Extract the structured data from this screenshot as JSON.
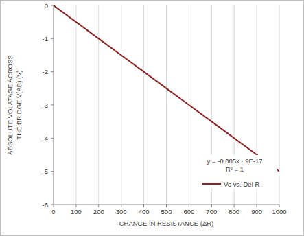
{
  "chart_data": {
    "type": "line",
    "x_label": "CHANGE IN RESISTANCE (ΔR)",
    "y_label": [
      "ABSOLUTE VOLATAGE ACROSS",
      "THE BRIDGE V(AB) (V)"
    ],
    "annotations": [
      "y = -0.005x - 9E-17",
      "R² = 1"
    ],
    "x": [
      0,
      100,
      200,
      300,
      400,
      500,
      600,
      700,
      800,
      900,
      1000
    ],
    "series": [
      {
        "name": "Vo vs. Del R",
        "color": "#8b2525",
        "values": [
          0,
          -0.5,
          -1,
          -1.5,
          -2,
          -2.5,
          -3,
          -3.5,
          -4,
          -4.5,
          -5
        ]
      }
    ],
    "xlim": [
      0,
      1000
    ],
    "xticks": [
      0,
      100,
      200,
      300,
      400,
      500,
      600,
      700,
      800,
      900,
      1000
    ],
    "ylim": [
      -6,
      0
    ],
    "yticks": [
      -6,
      -5,
      -4,
      -3,
      -2,
      -1,
      0
    ],
    "grid": true,
    "legend": "lower right"
  }
}
